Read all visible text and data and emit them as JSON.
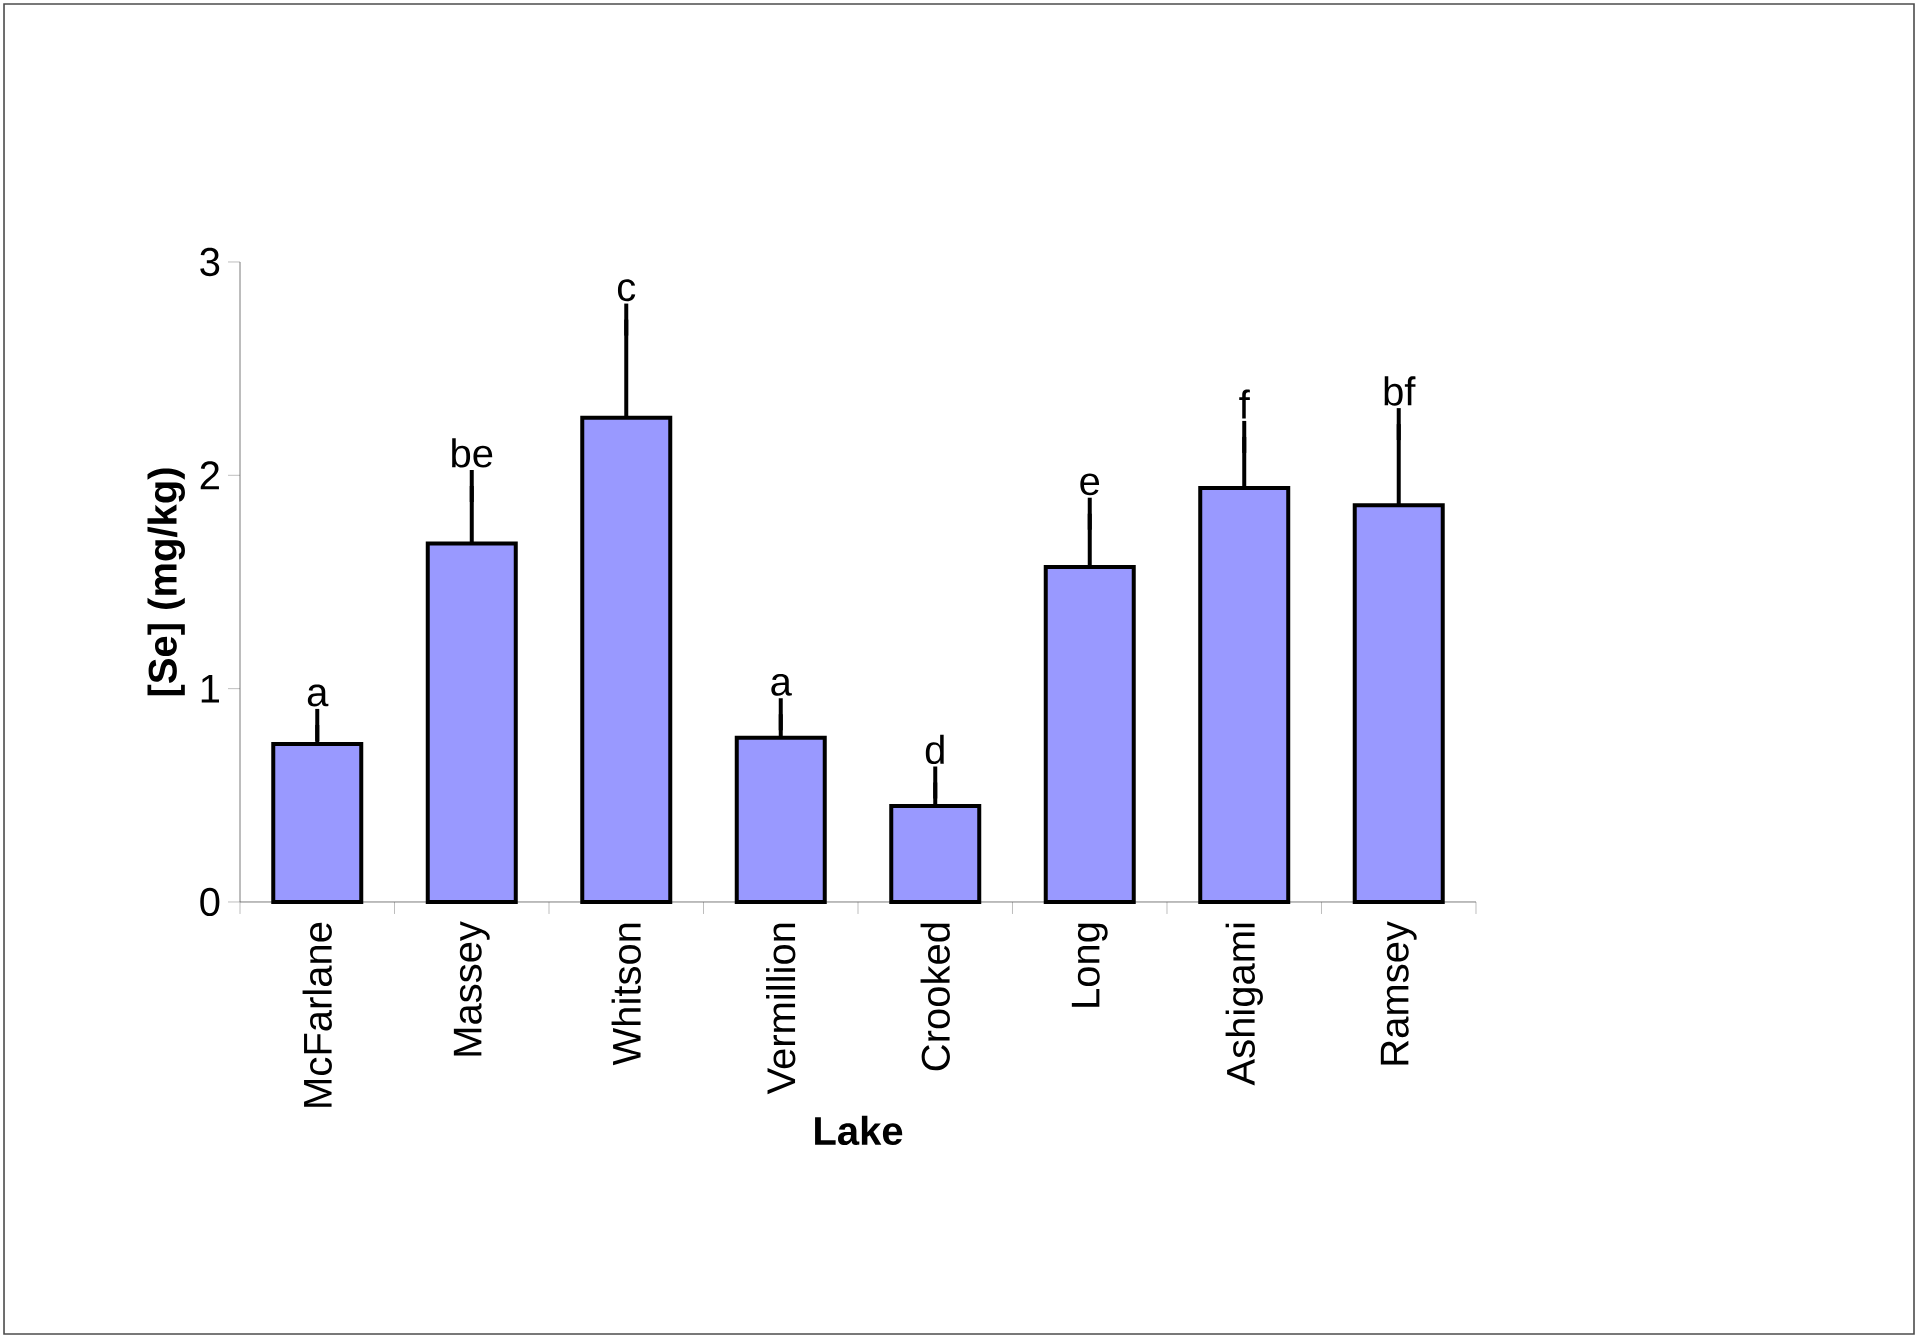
{
  "chart_data": {
    "type": "bar",
    "xlabel": "Lake",
    "ylabel": "[Se] (mg/kg)",
    "categories": [
      "McFarlane",
      "Massey",
      "Whitson",
      "Vermillion",
      "Crooked",
      "Long",
      "Ashigami",
      "Ramsey"
    ],
    "values": [
      0.74,
      1.68,
      2.27,
      0.77,
      0.45,
      1.57,
      1.94,
      1.86
    ],
    "errors": [
      [
        0.74,
        0.83
      ],
      [
        1.68,
        1.95
      ],
      [
        2.27,
        2.73
      ],
      [
        0.77,
        0.88
      ],
      [
        0.45,
        0.56
      ],
      [
        1.57,
        1.82
      ],
      [
        1.94,
        2.18
      ],
      [
        1.86,
        2.24
      ]
    ],
    "color": "#9999ff",
    "ylim": [
      0,
      3
    ],
    "yticks": [
      0,
      1,
      2,
      3
    ],
    "annotations": [
      "a",
      "be",
      "c",
      "a",
      "d",
      "e",
      "f",
      "bf"
    ]
  }
}
